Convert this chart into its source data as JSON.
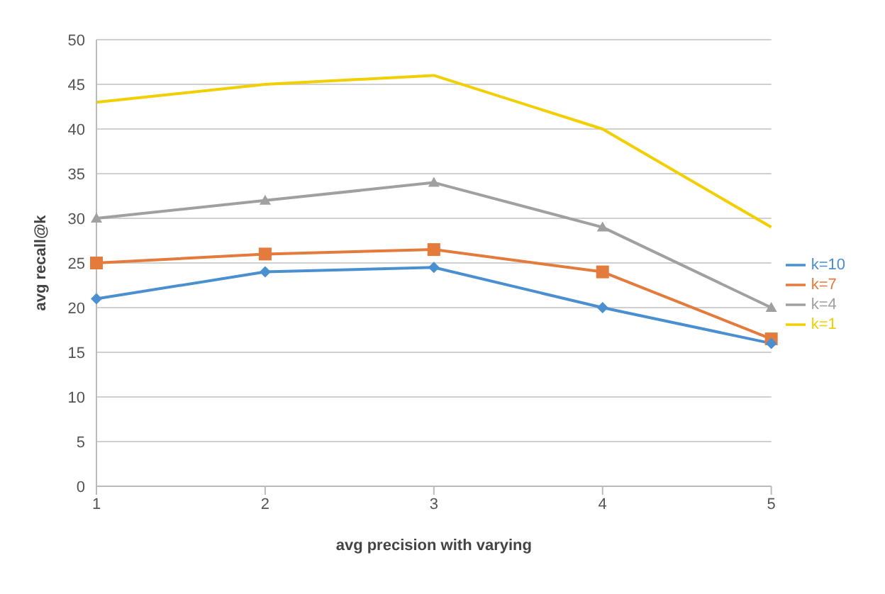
{
  "chart_data": {
    "type": "line",
    "xlabel": "avg precision with varying",
    "ylabel": "avg recall@k",
    "categories": [
      "1",
      "2",
      "3",
      "4",
      "5"
    ],
    "series": [
      {
        "name": "k=10",
        "color": "#4a8fd0",
        "marker": "diamond",
        "values": [
          21,
          24,
          24.5,
          20,
          16
        ]
      },
      {
        "name": "k=7",
        "color": "#e47b3c",
        "marker": "square",
        "values": [
          25,
          26,
          26.5,
          24,
          16.5
        ]
      },
      {
        "name": "k=4",
        "color": "#a0a0a0",
        "marker": "triangle",
        "values": [
          30,
          32,
          34,
          29,
          20
        ]
      },
      {
        "name": "k=1",
        "color": "#f2cf00",
        "marker": "none",
        "values": [
          43,
          45,
          46,
          40,
          29
        ]
      }
    ],
    "ylim": [
      0,
      50
    ],
    "yticks": [
      0,
      5,
      10,
      15,
      20,
      25,
      30,
      35,
      40,
      45,
      50
    ],
    "grid": "y",
    "legend": "right"
  }
}
